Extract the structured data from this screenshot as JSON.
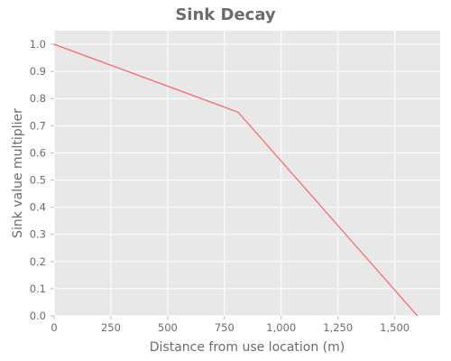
{
  "chart_data": {
    "type": "line",
    "title": "Sink Decay",
    "xlabel": "Distance from use location (m)",
    "ylabel": "Sink value multiplier",
    "xlim": [
      0,
      1700
    ],
    "ylim": [
      0,
      1.05
    ],
    "x_ticks": [
      0,
      250,
      500,
      750,
      1000,
      1250,
      1500
    ],
    "x_tick_labels": [
      "0",
      "250",
      "500",
      "750",
      "1,000",
      "1,250",
      "1,500"
    ],
    "y_ticks": [
      0.0,
      0.1,
      0.2,
      0.3,
      0.4,
      0.5,
      0.6,
      0.7,
      0.8,
      0.9,
      1.0
    ],
    "y_tick_labels": [
      "0.0",
      "0.1",
      "0.2",
      "0.3",
      "0.4",
      "0.5",
      "0.6",
      "0.7",
      "0.8",
      "0.9",
      "1.0"
    ],
    "grid": true,
    "legend": "none",
    "series": [
      {
        "color": "#ff5a5a",
        "x": [
          0,
          810,
          1600
        ],
        "y": [
          1.0,
          0.75,
          0.0
        ]
      }
    ]
  },
  "colors": {
    "plot_background": "#e8e8e8",
    "grid": "#ffffff",
    "text": "#6b6b6b",
    "axis_line": "#bdbdbd"
  }
}
